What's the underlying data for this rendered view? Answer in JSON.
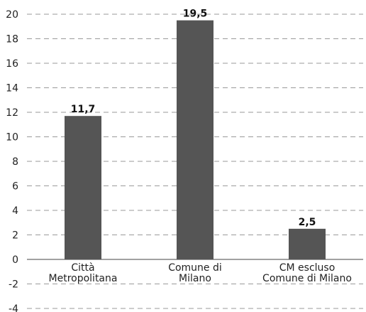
{
  "chart_data": {
    "type": "bar",
    "title": "",
    "xlabel": "",
    "ylabel": "",
    "categories": [
      [
        "Città",
        "Metropolitana"
      ],
      [
        "Comune di",
        "Milano"
      ],
      [
        "CM escluso",
        "Comune di Milano"
      ]
    ],
    "values": [
      11.7,
      19.5,
      2.5
    ],
    "data_labels": [
      "11,7",
      "19,5",
      "2,5"
    ],
    "ylim": [
      -4,
      20
    ],
    "yticks": [
      -4,
      -2,
      0,
      2,
      4,
      6,
      8,
      10,
      12,
      14,
      16,
      18,
      20
    ],
    "grid": true,
    "legend": "none",
    "colors": {
      "bar": "#555555",
      "grid": "#9a9a9a",
      "text": "#222222"
    }
  }
}
